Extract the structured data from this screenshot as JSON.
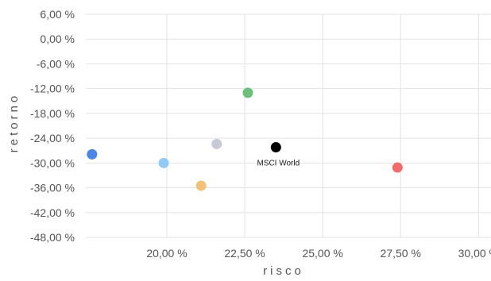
{
  "chart_data": {
    "type": "scatter",
    "xlabel": "risco",
    "ylabel": "retorno",
    "xlim": [
      17.4,
      30.4
    ],
    "ylim": [
      -48,
      6
    ],
    "x_ticks": [
      {
        "value": 20,
        "label": "20,00 %"
      },
      {
        "value": 22.5,
        "label": "22,50 %"
      },
      {
        "value": 25,
        "label": "25,00 %"
      },
      {
        "value": 27.5,
        "label": "27,50 %"
      },
      {
        "value": 30,
        "label": "30,00 %"
      }
    ],
    "y_ticks": [
      {
        "value": 6,
        "label": "6,00 %"
      },
      {
        "value": 0,
        "label": "0,00 %"
      },
      {
        "value": -6,
        "label": "-6,00 %"
      },
      {
        "value": -12,
        "label": "-12,00 %"
      },
      {
        "value": -18,
        "label": "-18,00 %"
      },
      {
        "value": -24,
        "label": "-24,00 %"
      },
      {
        "value": -30,
        "label": "-30,00 %"
      },
      {
        "value": -36,
        "label": "-36,00 %"
      },
      {
        "value": -42,
        "label": "-42,00 %"
      },
      {
        "value": -48,
        "label": "-48,00 %"
      }
    ],
    "grid": true,
    "points": [
      {
        "x": 17.6,
        "y": -27.9,
        "color": "#4a86e8"
      },
      {
        "x": 19.9,
        "y": -30.0,
        "color": "#90caf9"
      },
      {
        "x": 21.1,
        "y": -35.5,
        "color": "#f2c178"
      },
      {
        "x": 21.6,
        "y": -25.4,
        "color": "#c7c9d4"
      },
      {
        "x": 22.6,
        "y": -13.0,
        "color": "#6abf7b"
      },
      {
        "x": 23.5,
        "y": -26.2,
        "color": "#000000",
        "label": "MSCI World"
      },
      {
        "x": 27.4,
        "y": -31.1,
        "color": "#f26b6b"
      }
    ]
  }
}
